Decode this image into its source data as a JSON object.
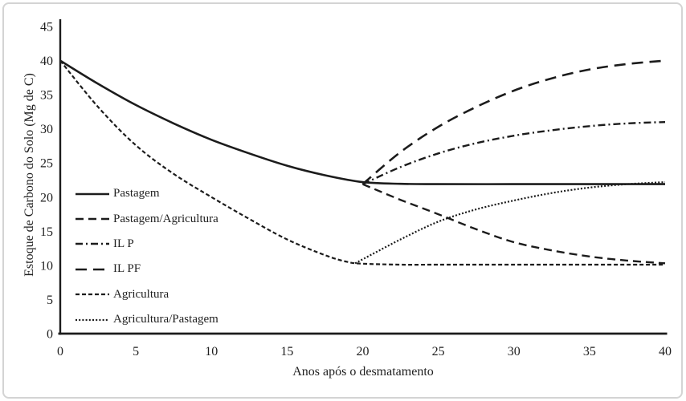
{
  "figure": {
    "background": "#ffffff",
    "border_color": "#d4d4d4",
    "line_color": "#1c1c1c",
    "text_color": "#1f1f1f"
  },
  "chart_data": {
    "type": "line",
    "title": "",
    "xlabel": "Anos após o desmatamento",
    "ylabel": "Estoque de Carbono do Solo (Mg de C)",
    "xlim": [
      0,
      40
    ],
    "ylim": [
      0,
      45
    ],
    "xticks": [
      0,
      5,
      10,
      15,
      20,
      25,
      30,
      35,
      40
    ],
    "yticks": [
      0,
      5,
      10,
      15,
      20,
      25,
      30,
      35,
      40,
      45
    ],
    "grid": false,
    "legend_position": "inside-left",
    "series": [
      {
        "name": "Agricultura",
        "line_style": "shortdash",
        "x": [
          0,
          2.5,
          5,
          7.5,
          10,
          12.5,
          15,
          17.5,
          19,
          20,
          22.5,
          25,
          30,
          35,
          40
        ],
        "y": [
          40,
          33.2,
          27.6,
          23.4,
          20,
          16.8,
          13.8,
          11.5,
          10.5,
          10.25,
          10.1,
          10.1,
          10.1,
          10.1,
          10.1
        ]
      },
      {
        "name": "Pastagem/Agricultura",
        "line_style": "dashed",
        "x": [
          20,
          22.5,
          25,
          27.5,
          30,
          32.5,
          35,
          37.5,
          40
        ],
        "y": [
          21.9,
          19.6,
          17.5,
          15.3,
          13.4,
          12.2,
          11.3,
          10.7,
          10.3
        ]
      },
      {
        "name": "Agricultura/Pastagem",
        "line_style": "dotted",
        "x": [
          19.5,
          22.5,
          25,
          27.5,
          30,
          32.5,
          35,
          37.5,
          40
        ],
        "y": [
          10.3,
          13.8,
          16.4,
          18.2,
          19.5,
          20.6,
          21.4,
          21.9,
          22.2
        ]
      },
      {
        "name": "IL P",
        "line_style": "dashdot",
        "x": [
          20,
          22.5,
          25,
          27.5,
          30,
          32.5,
          35,
          37.5,
          40
        ],
        "y": [
          21.9,
          24.4,
          26.4,
          27.9,
          29,
          29.8,
          30.4,
          30.8,
          31
        ]
      },
      {
        "name": "IL PF",
        "line_style": "longdash",
        "x": [
          20,
          22.5,
          25,
          27.5,
          30,
          32.5,
          35,
          37.5,
          40
        ],
        "y": [
          21.9,
          26.6,
          30.3,
          33.2,
          35.6,
          37.4,
          38.7,
          39.5,
          40
        ]
      },
      {
        "name": "Pastagem",
        "line_style": "solid",
        "x": [
          0,
          2.5,
          5,
          7.5,
          10,
          12.5,
          15,
          17.5,
          20,
          22.5,
          25,
          30,
          35,
          40
        ],
        "y": [
          40,
          36.6,
          33.5,
          30.8,
          28.4,
          26.4,
          24.6,
          23.2,
          22.2,
          21.95,
          21.9,
          21.9,
          21.9,
          21.9
        ]
      }
    ],
    "legend": [
      "Pastagem",
      "Pastagem/Agricultura",
      "IL P",
      "IL PF",
      "Agricultura",
      "Agricultura/Pastagem"
    ]
  }
}
